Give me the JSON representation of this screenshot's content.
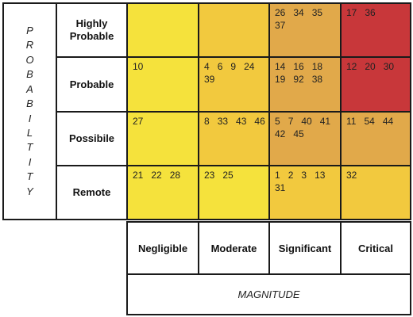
{
  "probability_label_letters": [
    "P",
    "R",
    "O",
    "B",
    "A",
    "B",
    "I",
    "L",
    "T",
    "I",
    "T",
    "Y"
  ],
  "magnitude_label": "MAGNITUDE",
  "rows": [
    {
      "label": "Highly\nProbable"
    },
    {
      "label": "Probable"
    },
    {
      "label": "Possibile"
    },
    {
      "label": "Remote"
    }
  ],
  "columns": [
    {
      "label": "Negligible"
    },
    {
      "label": "Moderate"
    },
    {
      "label": "Significant"
    },
    {
      "label": "Critical"
    }
  ],
  "colors": {
    "yellow": "#f5e23c",
    "light_orange": "#f2c93e",
    "orange": "#e1a94a",
    "red": "#c8373a",
    "border": "#1a1a1a"
  },
  "grid": [
    [
      {
        "color": "yellow",
        "items": []
      },
      {
        "color": "light_orange",
        "items": []
      },
      {
        "color": "orange",
        "items": [
          "26",
          "34",
          "35",
          "37"
        ]
      },
      {
        "color": "red",
        "items": [
          "17",
          "36"
        ]
      }
    ],
    [
      {
        "color": "yellow",
        "items": [
          "10"
        ]
      },
      {
        "color": "light_orange",
        "items": [
          "4",
          "6",
          "9",
          "24",
          "39"
        ]
      },
      {
        "color": "orange",
        "items": [
          "14",
          "16",
          "18",
          "19",
          "92",
          "38"
        ]
      },
      {
        "color": "red",
        "items": [
          "12",
          "20",
          "30"
        ]
      }
    ],
    [
      {
        "color": "yellow",
        "items": [
          "27"
        ]
      },
      {
        "color": "light_orange",
        "items": [
          "8",
          "33",
          "43",
          "46"
        ]
      },
      {
        "color": "orange",
        "items": [
          "5",
          "7",
          "40",
          "41",
          "42",
          "45"
        ]
      },
      {
        "color": "orange",
        "items": [
          "11",
          "54",
          "44"
        ]
      }
    ],
    [
      {
        "color": "yellow",
        "items": [
          "21",
          "22",
          "28"
        ]
      },
      {
        "color": "yellow",
        "items": [
          "23",
          "25"
        ]
      },
      {
        "color": "light_orange",
        "items": [
          "1",
          "2",
          "3",
          "13",
          "31"
        ]
      },
      {
        "color": "light_orange",
        "items": [
          "32"
        ]
      }
    ]
  ]
}
